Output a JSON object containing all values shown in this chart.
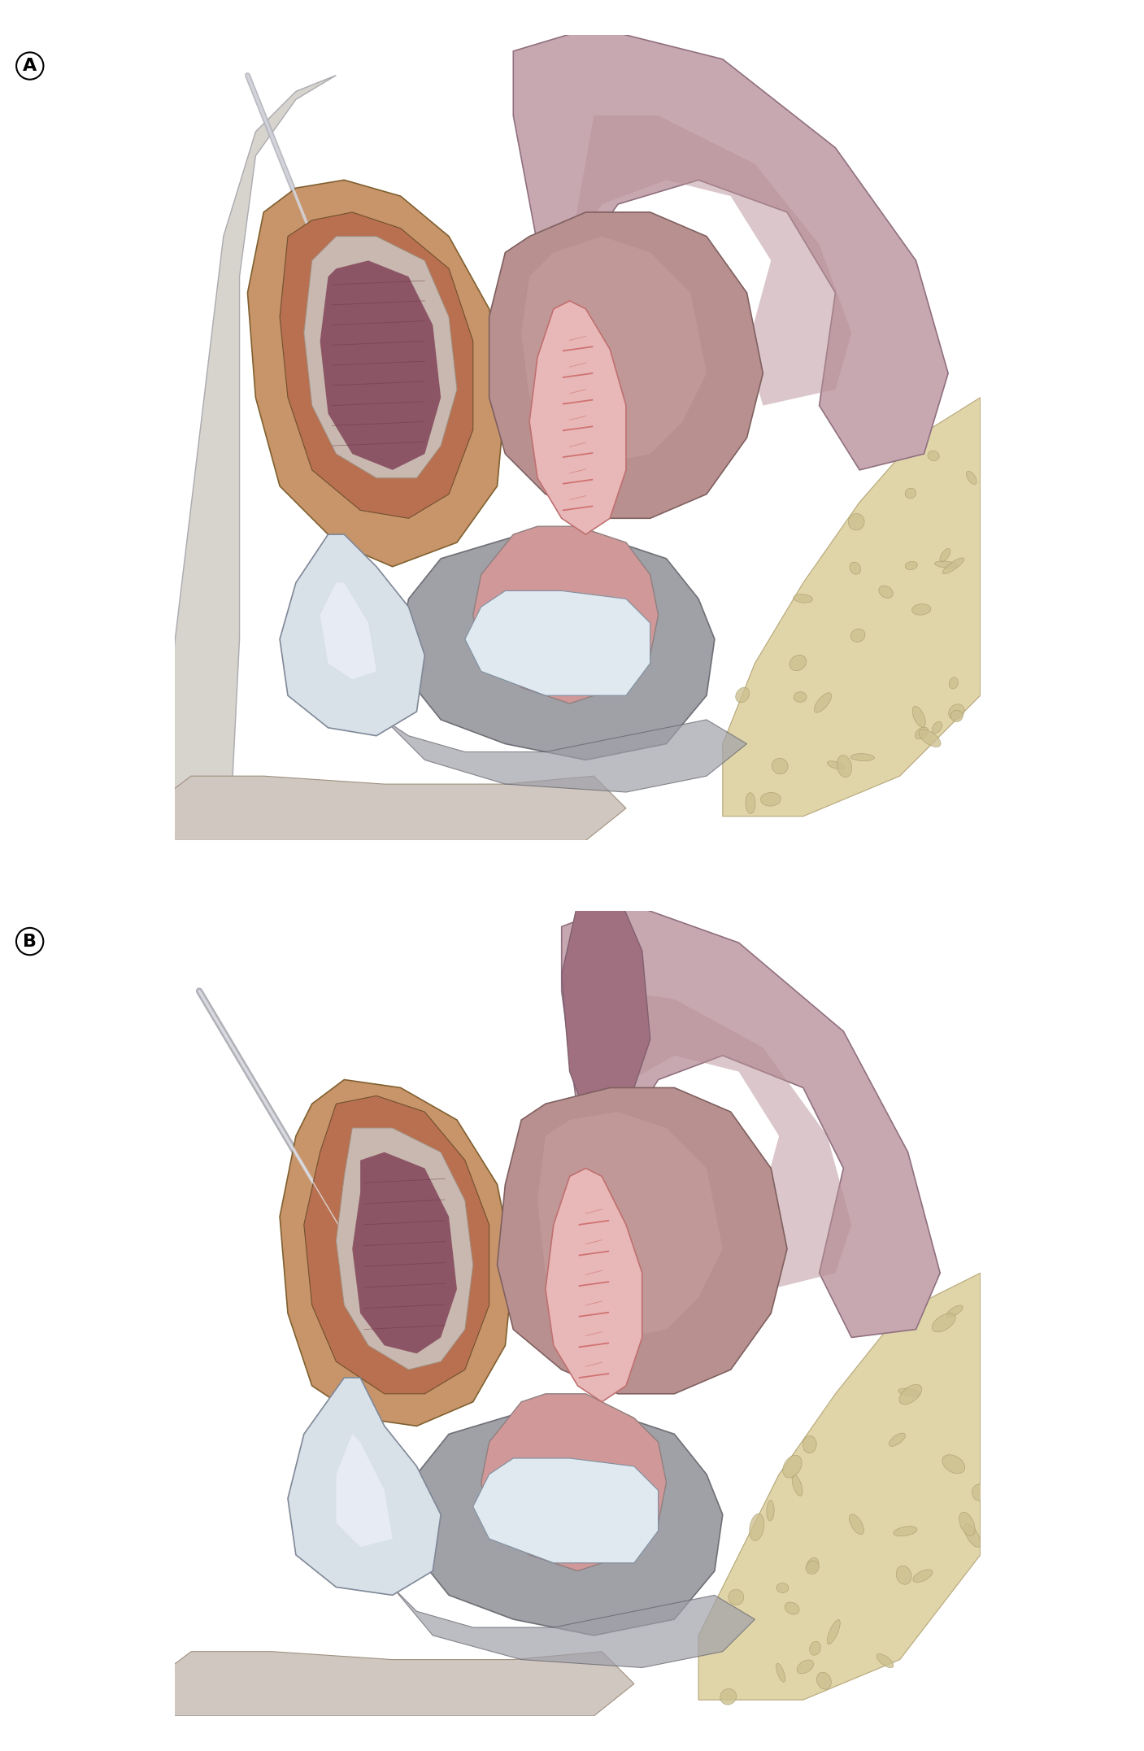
{
  "figure_width": 14.07,
  "figure_height": 21.53,
  "dpi": 100,
  "background_color": "#ffffff",
  "label_A": "A",
  "label_B": "B",
  "label_fontsize": 16,
  "colors": {
    "skin": "#d4cec8",
    "bone_outer": "#a0a0a8",
    "bone_inner": "#c8c8d0",
    "muscle_brown_outer": "#c8956a",
    "muscle_brown_inner": "#a06040",
    "rectum_fill": "#8b5565",
    "large_bowel": "#c8a8b0",
    "large_bowel_edge": "#907080",
    "uterus": "#b89090",
    "uterus_edge": "#806060",
    "vagina_fill": "#e8b8b8",
    "vagina_rugae": "#cc6666",
    "bladder": "#d8e0e8",
    "bladder_edge": "#808898",
    "common_channel": "#d09898",
    "sphincter_gray": "#909098",
    "sphincter_edge": "#606068",
    "white_struct": "#e0e8f0",
    "fatty": "#ddd0a0",
    "fatty_edge": "#b0a070",
    "fatty_blob": "#ccc090",
    "fatty_blob_edge": "#a09060",
    "pubic": "#b8b8b0",
    "pubic_edge": "#808880",
    "perineum": "#a0a0aa",
    "line_dark": "#404040",
    "line_mid": "#707070"
  }
}
